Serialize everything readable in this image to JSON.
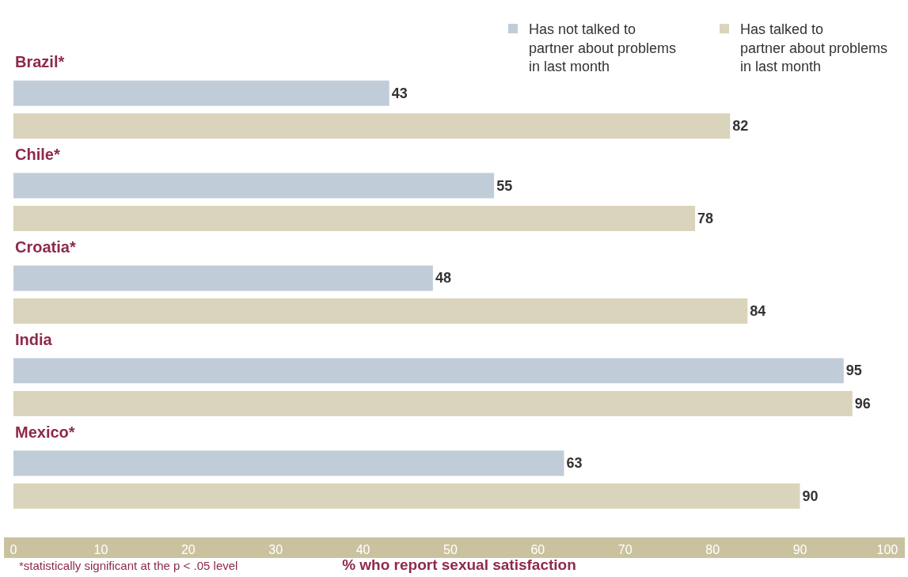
{
  "chart_data": {
    "type": "bar",
    "orientation": "horizontal",
    "categories": [
      "Brazil*",
      "Chile*",
      "Croatia*",
      "India",
      "Mexico*"
    ],
    "series": [
      {
        "name": "Has not talked to\npartner about problems\nin last month",
        "color": "#c0ccd8",
        "values": [
          43,
          55,
          48,
          95,
          63
        ]
      },
      {
        "name": "Has talked to\npartner about problems\nin last month",
        "color": "#d9d4bb",
        "values": [
          82,
          78,
          84,
          96,
          90
        ]
      }
    ],
    "xlabel": "% who report sexual satisfaction",
    "xlim": [
      0,
      102
    ],
    "xticks": [
      0,
      10,
      20,
      30,
      40,
      50,
      60,
      70,
      80,
      90,
      100
    ],
    "annotations": [
      "*statistically significant at the p < .05 level"
    ],
    "data_labels": true,
    "legend": "top right",
    "grid": false
  }
}
